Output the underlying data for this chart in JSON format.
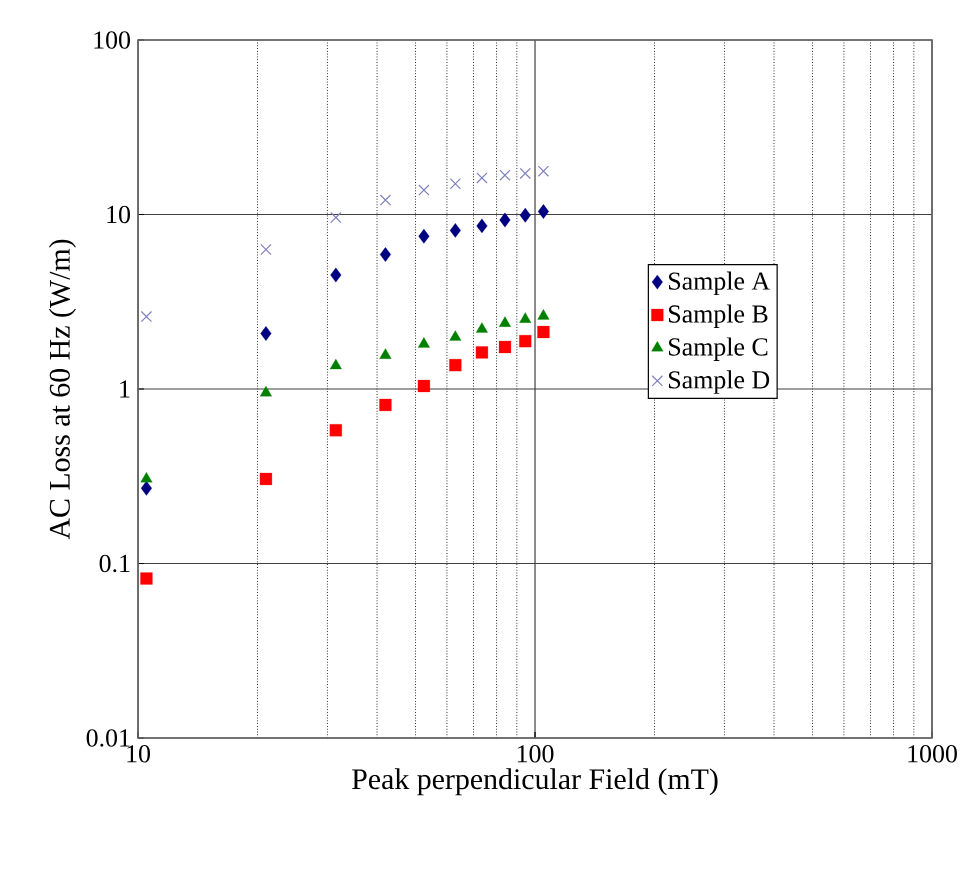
{
  "chart_data": {
    "type": "scatter",
    "xlabel": "Peak perpendicular Field (mT)",
    "ylabel": "AC Loss at 60 Hz (W/m)",
    "x": [
      10.5,
      21,
      31.5,
      42,
      52.5,
      63,
      73.5,
      84,
      94.5,
      105
    ],
    "series": [
      {
        "name": "Sample A",
        "color": "#000080",
        "marker": "diamond",
        "values": [
          0.27,
          2.08,
          4.5,
          5.9,
          7.5,
          8.1,
          8.6,
          9.3,
          9.9,
          10.4
        ]
      },
      {
        "name": "Sample B",
        "color": "#ff0000",
        "marker": "square",
        "values": [
          0.082,
          0.305,
          0.58,
          0.81,
          1.04,
          1.37,
          1.62,
          1.74,
          1.88,
          2.12
        ]
      },
      {
        "name": "Sample C",
        "color": "#008000",
        "marker": "triangle",
        "values": [
          0.305,
          0.95,
          1.36,
          1.56,
          1.81,
          1.98,
          2.2,
          2.38,
          2.51,
          2.62
        ]
      },
      {
        "name": "Sample D",
        "color": "#8080c0",
        "marker": "cross",
        "values": [
          2.6,
          6.3,
          9.6,
          12.1,
          13.8,
          15.0,
          16.2,
          16.8,
          17.2,
          17.7
        ]
      }
    ],
    "log": "xy",
    "xlim": [
      10,
      1000
    ],
    "xticks": [
      10,
      100,
      1000
    ],
    "ylim": [
      0.01,
      100
    ],
    "yticks": [
      0.01,
      0.1,
      1,
      10,
      100
    ],
    "grid": true,
    "legend": "right"
  }
}
